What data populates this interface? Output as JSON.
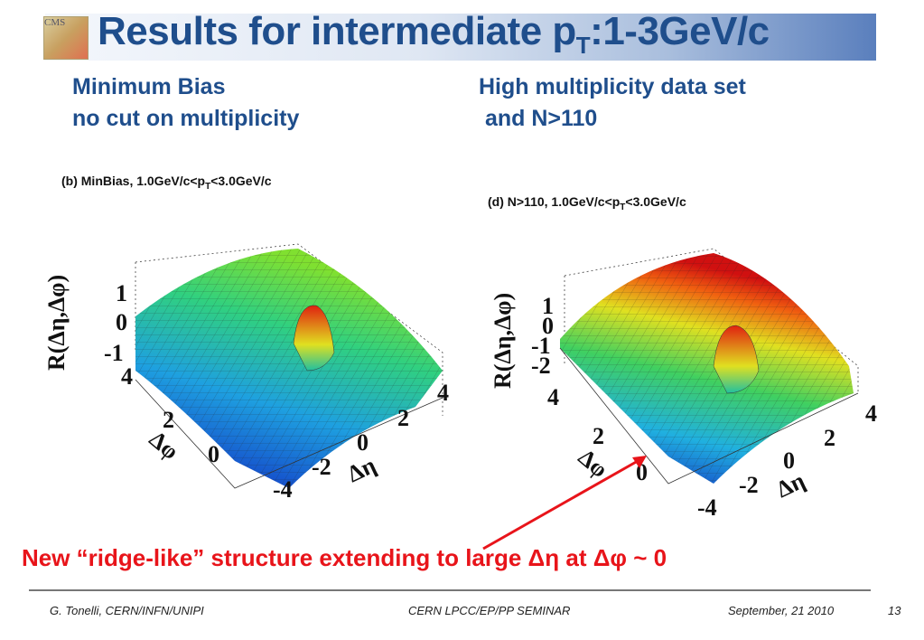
{
  "title": {
    "main": "Results for intermediate p",
    "sub": "T",
    "tail": ":1-3GeV/c",
    "logo_text": "CMS"
  },
  "left_heading": {
    "line1": "Minimum Bias",
    "line2": "no cut on multiplicity"
  },
  "right_heading": {
    "line1": "High multiplicity data set",
    "line2": " and N>110"
  },
  "plots": [
    {
      "caption_pre": "(b) MinBias, 1.0GeV/c<p",
      "caption_sub": "T",
      "caption_post": "<3.0GeV/c",
      "zlabel": "R(Δη,Δφ)",
      "zticks": [
        "1",
        "0",
        "-1"
      ],
      "phi_label": "Δφ",
      "phi_ticks": [
        "4",
        "2",
        "0"
      ],
      "eta_label": "Δη",
      "eta_ticks": [
        "4",
        "2",
        "0",
        "-2",
        "-4"
      ]
    },
    {
      "caption_pre": "(d) N>110, 1.0GeV/c<p",
      "caption_sub": "T",
      "caption_post": "<3.0GeV/c",
      "zlabel": "R(Δη,Δφ)",
      "zticks": [
        "1",
        "0",
        "-1",
        "-2"
      ],
      "phi_label": "Δφ",
      "phi_ticks": [
        "4",
        "2",
        "0"
      ],
      "eta_label": "Δη",
      "eta_ticks": [
        "4",
        "2",
        "0",
        "-2",
        "-4"
      ]
    }
  ],
  "note": "New  “ridge-like” structure extending to large Δη at Δφ ~ 0",
  "footer": {
    "author": "G. Tonelli, CERN/INFN/UNIPI",
    "event": "CERN LPCC/EP/PP SEMINAR",
    "date": "September, 21 2010",
    "page": "13"
  },
  "colors": {
    "title": "#1f4e8c",
    "note": "#e8141a"
  }
}
